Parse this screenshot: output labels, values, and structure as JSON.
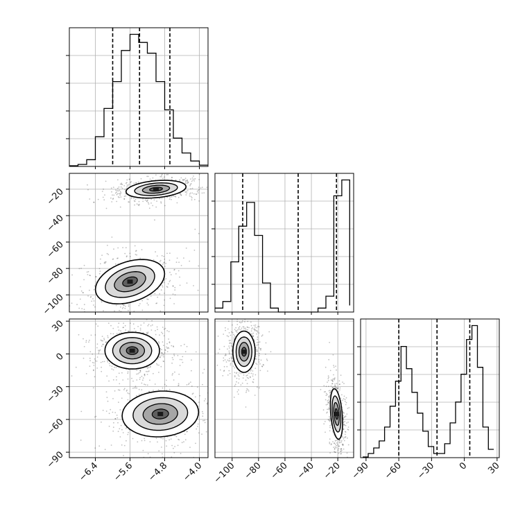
{
  "chart_data": {
    "type": "corner",
    "title": "",
    "grid": true,
    "quantile_lines": "dashed",
    "variables": [
      "",
      "",
      ""
    ],
    "axes": {
      "p0": {
        "range": [
          -7.0,
          -3.8
        ],
        "ticks": [
          -6.4,
          -5.6,
          -4.8,
          -4.0
        ],
        "tick_labels": [
          "−6.4",
          "−5.6",
          "−4.8",
          "−4.0"
        ]
      },
      "p1": {
        "range": [
          -113,
          -8
        ],
        "ticks": [
          -100,
          -80,
          -60,
          -40,
          -20
        ],
        "tick_labels": [
          "−100",
          "−80",
          "−60",
          "−40",
          "−20"
        ]
      },
      "p2": {
        "range": [
          -95,
          32
        ],
        "ticks": [
          -90,
          -60,
          -30,
          0,
          30
        ],
        "tick_labels": [
          "−90",
          "−60",
          "−30",
          "0",
          "30"
        ]
      }
    },
    "marginals": [
      {
        "name": "p0",
        "quantiles": [
          -6.0,
          -5.38,
          -4.68
        ],
        "bins": [
          -7.0,
          -6.8,
          -6.6,
          -6.4,
          -6.2,
          -6.0,
          -5.8,
          -5.6,
          -5.4,
          -5.2,
          -5.0,
          -4.8,
          -4.6,
          -4.4,
          -4.2,
          -4.0,
          -3.8
        ],
        "counts": [
          0.5,
          1.5,
          5,
          22,
          43,
          63,
          86,
          98,
          92,
          84,
          63,
          42,
          21,
          10,
          4,
          1
        ]
      },
      {
        "name": "p1",
        "quantiles": [
          -92,
          -50,
          -21
        ],
        "bins": [
          -113,
          -107,
          -101,
          -95,
          -89,
          -83,
          -77,
          -71,
          -65,
          -59,
          -53,
          -47,
          -41,
          -35,
          -29,
          -23,
          -17,
          -11
        ],
        "counts": [
          3,
          8,
          38,
          65,
          83,
          58,
          22,
          3,
          0,
          0,
          0,
          0,
          0,
          3,
          12,
          88,
          100,
          5
        ]
      },
      {
        "name": "p2",
        "quantiles": [
          -60,
          -25,
          5
        ],
        "bins": [
          -93,
          -88,
          -83,
          -78,
          -73,
          -68,
          -63,
          -58,
          -53,
          -48,
          -43,
          -38,
          -33,
          -28,
          -23,
          -18,
          -13,
          -8,
          -3,
          2,
          7,
          12,
          17,
          22,
          27
        ],
        "counts": [
          0.5,
          3,
          7,
          12,
          22,
          37,
          55,
          80,
          64,
          47,
          32,
          19,
          8,
          3,
          3,
          10,
          25,
          40,
          60,
          85,
          95,
          65,
          22,
          6
        ]
      }
    ],
    "joint": [
      {
        "pair": [
          "p0",
          "p1"
        ],
        "modes": [
          {
            "x": -5.0,
            "y": -20,
            "sx": 0.33,
            "sy": 3.2,
            "rho": 0.28
          },
          {
            "x": -5.6,
            "y": -90,
            "sx": 0.38,
            "sy": 8.0,
            "rho": 0.35
          }
        ]
      },
      {
        "pair": [
          "p0",
          "p2"
        ],
        "modes": [
          {
            "x": -5.55,
            "y": 3,
            "sx": 0.3,
            "sy": 8.0,
            "rho": 0.0
          },
          {
            "x": -4.9,
            "y": -55,
            "sx": 0.42,
            "sy": 10.0,
            "rho": 0.08
          }
        ]
      },
      {
        "pair": [
          "p1",
          "p2"
        ],
        "modes": [
          {
            "x": -91,
            "y": 2,
            "sx": 4.0,
            "sy": 9.0,
            "rho": 0.0
          },
          {
            "x": -21,
            "y": -55,
            "sx": 2.2,
            "sy": 11.0,
            "rho": -0.35
          }
        ]
      }
    ]
  }
}
